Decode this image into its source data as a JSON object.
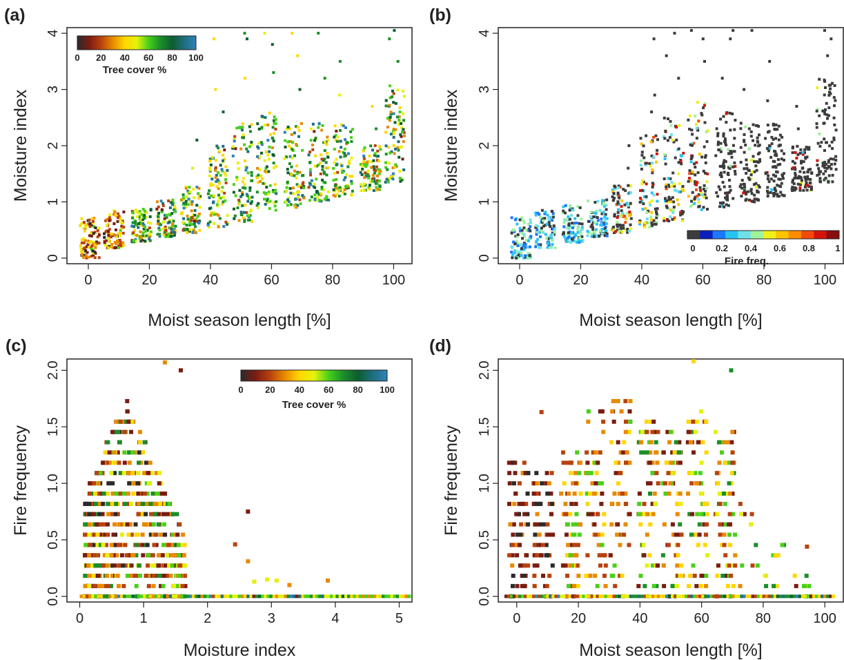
{
  "colors": {
    "tree_cover_ramp": [
      "#2b2b2b",
      "#7a1c12",
      "#b8420f",
      "#e88a00",
      "#ffd700",
      "#e5f20c",
      "#49d11a",
      "#1a8f2a",
      "#0d5e2f",
      "#1e6e7f",
      "#2f82b8"
    ],
    "fire_freq_ramp": [
      "#3c3c3c",
      "#0a1fbf",
      "#1e78ff",
      "#27c4f2",
      "#6fe0e8",
      "#9ff29c",
      "#f0f01a",
      "#ffc300",
      "#ff8c00",
      "#f24a0a",
      "#d4130a",
      "#8a0d0d"
    ],
    "axis": "#222222"
  },
  "panels": [
    {
      "letter": "(a)",
      "xlabel": "Moist season length [%]",
      "ylabel": "Moisture index",
      "xticks": [
        "0",
        "20",
        "40",
        "60",
        "80",
        "100"
      ],
      "yticks": [
        "0",
        "1",
        "2",
        "3",
        "4"
      ],
      "legend": {
        "ticks": [
          "0",
          "20",
          "40",
          "60",
          "80",
          "100"
        ],
        "title": "Tree cover %"
      }
    },
    {
      "letter": "(b)",
      "xlabel": "Moist season length [%]",
      "ylabel": "Moisture index",
      "xticks": [
        "0",
        "20",
        "40",
        "60",
        "80",
        "100"
      ],
      "yticks": [
        "0",
        "1",
        "2",
        "3",
        "4"
      ],
      "legend": {
        "ticks": [
          "0",
          "0.2",
          "0.4",
          "0.6",
          "0.8",
          "1"
        ],
        "title": "Fire freq."
      }
    },
    {
      "letter": "(c)",
      "xlabel": "Moisture index",
      "ylabel": "Fire frequency",
      "xticks": [
        "0",
        "1",
        "2",
        "3",
        "4",
        "5"
      ],
      "yticks": [
        "0.0",
        "0.5",
        "1.0",
        "1.5",
        "2.0"
      ],
      "legend": {
        "ticks": [
          "0",
          "20",
          "40",
          "60",
          "80",
          "100"
        ],
        "title": "Tree cover %"
      }
    },
    {
      "letter": "(d)",
      "xlabel": "Moist season length [%]",
      "ylabel": "Fire frequency",
      "xticks": [
        "0",
        "20",
        "40",
        "60",
        "80",
        "100"
      ],
      "yticks": [
        "0.0",
        "0.5",
        "1.0",
        "1.5",
        "2.0"
      ]
    }
  ],
  "chart_data": [
    {
      "type": "scatter",
      "panel": "(a)",
      "xlabel": "Moist season length [%]",
      "ylabel": "Moisture index",
      "xlim": [
        -7,
        106
      ],
      "ylim": [
        -0.1,
        4.1
      ],
      "color_variable": "Tree cover %",
      "color_range": [
        0,
        100
      ],
      "groups": [
        {
          "x": 0,
          "y_min": 0.0,
          "y_max": 0.72,
          "y_outliers": []
        },
        {
          "x": 8,
          "y_min": 0.18,
          "y_max": 0.85,
          "y_outliers": []
        },
        {
          "x": 17,
          "y_min": 0.28,
          "y_max": 0.9,
          "y_outliers": []
        },
        {
          "x": 25,
          "y_min": 0.38,
          "y_max": 1.05,
          "y_outliers": []
        },
        {
          "x": 33,
          "y_min": 0.45,
          "y_max": 1.3,
          "y_outliers": [
            1.6,
            2.1
          ]
        },
        {
          "x": 42,
          "y_min": 0.55,
          "y_max": 2.0,
          "y_outliers": [
            2.6,
            3.0,
            3.9
          ]
        },
        {
          "x": 50,
          "y_min": 0.65,
          "y_max": 2.4,
          "y_outliers": [
            3.2,
            3.9,
            4.0
          ]
        },
        {
          "x": 58,
          "y_min": 0.85,
          "y_max": 2.6,
          "y_outliers": [
            3.3,
            3.8,
            4.0
          ]
        },
        {
          "x": 67,
          "y_min": 0.9,
          "y_max": 2.4,
          "y_outliers": [
            3.0,
            3.6,
            4.0
          ]
        },
        {
          "x": 75,
          "y_min": 1.0,
          "y_max": 2.4,
          "y_outliers": [
            3.2,
            4.0
          ]
        },
        {
          "x": 83,
          "y_min": 1.1,
          "y_max": 2.4,
          "y_outliers": [
            2.9,
            3.5
          ]
        },
        {
          "x": 92,
          "y_min": 1.2,
          "y_max": 2.0,
          "y_outliers": [
            2.3,
            2.7
          ]
        },
        {
          "x": 100,
          "y_min": 1.35,
          "y_max": 3.1,
          "y_outliers": [
            3.5,
            3.9,
            4.05
          ]
        }
      ]
    },
    {
      "type": "scatter",
      "panel": "(b)",
      "xlabel": "Moist season length [%]",
      "ylabel": "Moisture index",
      "xlim": [
        -7,
        106
      ],
      "ylim": [
        -0.1,
        4.1
      ],
      "color_variable": "Fire freq.",
      "color_range": [
        0,
        1
      ],
      "groups": [
        {
          "x": 0,
          "y_min": 0.0,
          "y_max": 0.72,
          "y_outliers": []
        },
        {
          "x": 8,
          "y_min": 0.18,
          "y_max": 0.85,
          "y_outliers": []
        },
        {
          "x": 17,
          "y_min": 0.28,
          "y_max": 0.95,
          "y_outliers": []
        },
        {
          "x": 25,
          "y_min": 0.38,
          "y_max": 1.05,
          "y_outliers": []
        },
        {
          "x": 33,
          "y_min": 0.45,
          "y_max": 1.3,
          "y_outliers": [
            1.6,
            2.0
          ]
        },
        {
          "x": 42,
          "y_min": 0.55,
          "y_max": 2.2,
          "y_outliers": [
            2.6,
            2.9,
            3.9
          ]
        },
        {
          "x": 50,
          "y_min": 0.65,
          "y_max": 2.6,
          "y_outliers": [
            3.2,
            3.6,
            4.0
          ]
        },
        {
          "x": 58,
          "y_min": 0.85,
          "y_max": 2.8,
          "y_outliers": [
            3.5,
            3.9,
            4.05
          ]
        },
        {
          "x": 67,
          "y_min": 0.9,
          "y_max": 2.6,
          "y_outliers": [
            3.2,
            3.9,
            4.05
          ]
        },
        {
          "x": 75,
          "y_min": 1.0,
          "y_max": 2.4,
          "y_outliers": [
            3.0,
            4.05
          ]
        },
        {
          "x": 83,
          "y_min": 1.1,
          "y_max": 2.4,
          "y_outliers": [
            2.8,
            3.5
          ]
        },
        {
          "x": 92,
          "y_min": 1.2,
          "y_max": 2.0,
          "y_outliers": [
            2.3,
            2.7
          ]
        },
        {
          "x": 100,
          "y_min": 1.35,
          "y_max": 3.2,
          "y_outliers": [
            3.6,
            3.9,
            4.05
          ]
        }
      ]
    },
    {
      "type": "scatter",
      "panel": "(c)",
      "xlabel": "Moisture index",
      "ylabel": "Fire frequency",
      "xlim": [
        -0.2,
        5.2
      ],
      "ylim": [
        -0.05,
        2.1
      ],
      "color_variable": "Tree cover %",
      "color_range": [
        0,
        100
      ],
      "cloud": {
        "x_range": [
          0.05,
          1.9
        ],
        "x_peak": 0.7,
        "y_max_at_peak": 1.75
      },
      "outliers": [
        [
          2.6,
          0.75
        ],
        [
          2.4,
          0.46
        ],
        [
          2.6,
          0.31
        ],
        [
          2.7,
          0.13
        ],
        [
          2.9,
          0.15
        ],
        [
          3.05,
          0.14
        ],
        [
          3.25,
          0.1
        ],
        [
          3.85,
          0.14
        ],
        [
          1.3,
          2.07
        ],
        [
          1.55,
          2.0
        ]
      ],
      "baseline": {
        "y": 0.0,
        "x_range": [
          0,
          5.2
        ]
      }
    },
    {
      "type": "scatter",
      "panel": "(d)",
      "xlabel": "Moist season length [%]",
      "ylabel": "Fire frequency",
      "xlim": [
        -6,
        106
      ],
      "ylim": [
        -0.05,
        2.1
      ],
      "color_variable": "Tree cover %",
      "color_range": [
        0,
        100
      ],
      "groups": [
        {
          "x": 0,
          "y_max": 1.2,
          "y_outliers": []
        },
        {
          "x": 8,
          "y_max": 1.1,
          "y_outliers": [
            1.63
          ]
        },
        {
          "x": 17,
          "y_max": 1.25,
          "y_outliers": []
        },
        {
          "x": 25,
          "y_max": 1.65,
          "y_outliers": []
        },
        {
          "x": 33,
          "y_max": 1.75,
          "y_outliers": []
        },
        {
          "x": 42,
          "y_max": 1.55,
          "y_outliers": []
        },
        {
          "x": 50,
          "y_max": 1.5,
          "y_outliers": []
        },
        {
          "x": 58,
          "y_max": 1.6,
          "y_outliers": [
            2.08
          ]
        },
        {
          "x": 67,
          "y_max": 1.45,
          "y_outliers": [
            2.0
          ]
        },
        {
          "x": 75,
          "y_max": 1.1,
          "y_outliers": []
        },
        {
          "x": 83,
          "y_max": 0.5,
          "y_outliers": [
            0.36
          ]
        },
        {
          "x": 92,
          "y_max": 0.2,
          "y_outliers": [
            0.44
          ]
        }
      ],
      "baseline": {
        "y": 0.0,
        "x_range": [
          -4,
          103
        ]
      }
    }
  ]
}
